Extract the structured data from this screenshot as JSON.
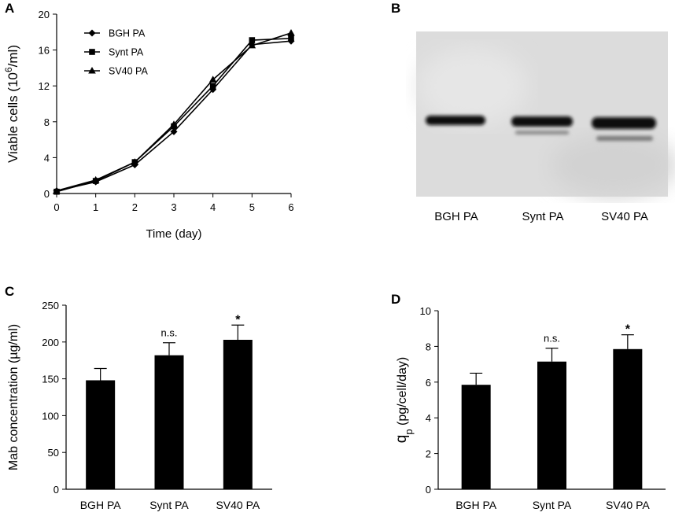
{
  "panels": {
    "A": {
      "letter": "A"
    },
    "B": {
      "letter": "B",
      "lane_labels": [
        "BGH PA",
        "Synt PA",
        "SV40 PA"
      ]
    },
    "C": {
      "letter": "C"
    },
    "D": {
      "letter": "D"
    }
  },
  "chart_data": [
    {
      "panel": "A",
      "type": "line",
      "xlabel": "Time (day)",
      "ylabel": {
        "pre": "Viable cells (10",
        "sup": "6",
        "post": "/ml)"
      },
      "x": [
        0,
        1,
        2,
        3,
        4,
        5,
        6
      ],
      "xlim": [
        0,
        6
      ],
      "ylim": [
        0,
        20
      ],
      "xticks": [
        "0",
        "1",
        "2",
        "3",
        "4",
        "5",
        "6"
      ],
      "yticks": [
        "0",
        "4",
        "8",
        "12",
        "16",
        "20"
      ],
      "legend_position": "top-left",
      "grid": false,
      "series": [
        {
          "name": "BGH PA",
          "marker": "diamond",
          "values": [
            0.3,
            1.3,
            3.2,
            6.9,
            11.6,
            16.6,
            17.0
          ]
        },
        {
          "name": "Synt PA",
          "marker": "square",
          "values": [
            0.2,
            1.4,
            3.5,
            7.5,
            12.0,
            17.1,
            17.3
          ]
        },
        {
          "name": "SV40 PA",
          "marker": "triangle",
          "values": [
            0.3,
            1.5,
            3.5,
            7.7,
            12.7,
            16.5,
            17.9
          ]
        }
      ]
    },
    {
      "panel": "C",
      "type": "bar",
      "categories": [
        "BGH PA",
        "Synt PA",
        "SV40 PA"
      ],
      "values": [
        148,
        182,
        203
      ],
      "errors": [
        16,
        17,
        20
      ],
      "annotations": [
        "",
        "n.s.",
        "*"
      ],
      "ylabel": "Mab concentration (µg/ml)",
      "ylim": [
        0,
        250
      ],
      "yticks": [
        "0",
        "50",
        "100",
        "150",
        "200",
        "250"
      ],
      "grid": false
    },
    {
      "panel": "D",
      "type": "bar",
      "categories": [
        "BGH PA",
        "Synt PA",
        "SV40 PA"
      ],
      "values": [
        5.85,
        7.15,
        7.85
      ],
      "errors": [
        0.65,
        0.75,
        0.8
      ],
      "annotations": [
        "",
        "n.s.",
        "*"
      ],
      "ylabel": {
        "q": "q",
        "sub": "p",
        "rest": " (pg/cell/day)"
      },
      "ylim": [
        0,
        10
      ],
      "yticks": [
        "0",
        "2",
        "4",
        "6",
        "8",
        "10"
      ],
      "grid": false
    }
  ]
}
